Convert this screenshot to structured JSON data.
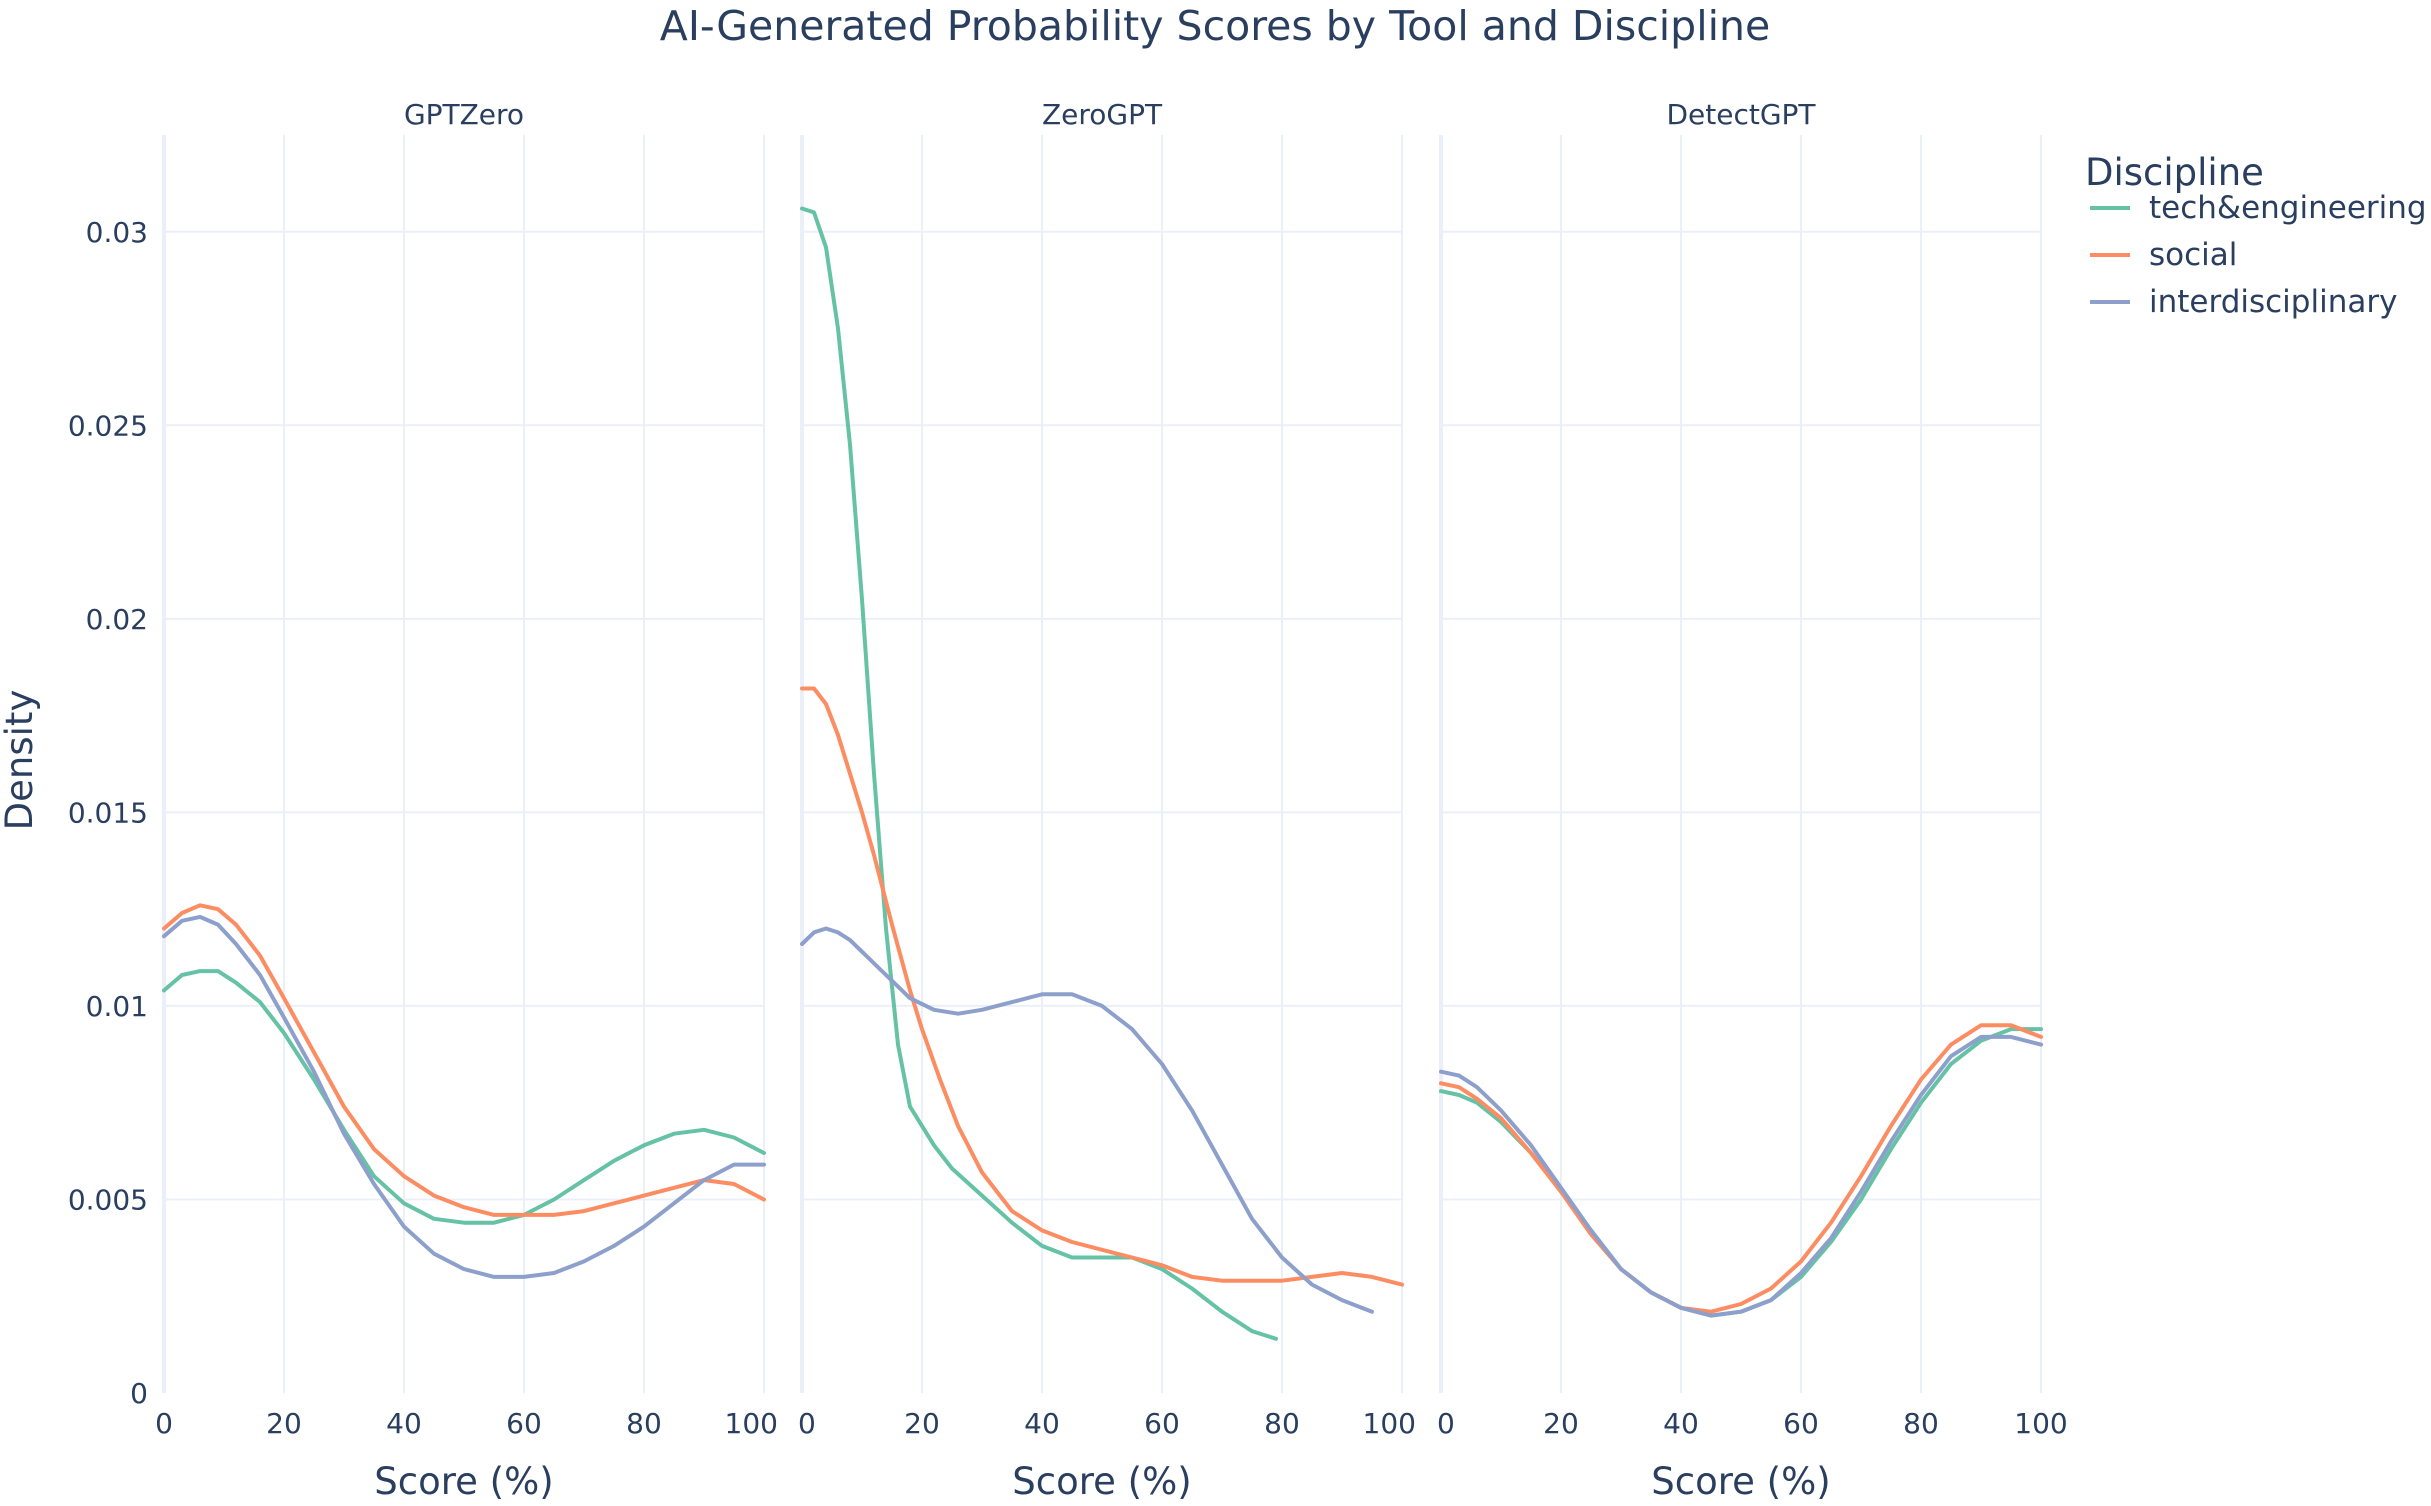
{
  "chart_data": {
    "type": "line",
    "title": "AI-Generated Probability Scores by Tool and Discipline",
    "ylabel": "Density",
    "xlabel": "Score (%)",
    "ylim": [
      0,
      0.0325
    ],
    "xlim": [
      0,
      100
    ],
    "xticks": [
      "0",
      "20",
      "40",
      "60",
      "80",
      "100"
    ],
    "yticks": [
      "0",
      "0.005",
      "0.01",
      "0.015",
      "0.02",
      "0.025",
      "0.03"
    ],
    "grid": true,
    "legend": {
      "title": "Discipline",
      "placement": "top-right",
      "entries": [
        "tech&engineering",
        "social",
        "interdisciplinary"
      ]
    },
    "colors": {
      "tech&engineering": "#66c2a5",
      "social": "#fc8d62",
      "interdisciplinary": "#8da0cb"
    },
    "panels": [
      {
        "name": "GPTZero",
        "series": [
          {
            "name": "tech&engineering",
            "x": [
              0,
              3,
              6,
              9,
              12,
              16,
              20,
              25,
              30,
              35,
              40,
              45,
              50,
              55,
              60,
              65,
              70,
              75,
              80,
              85,
              90,
              95,
              100
            ],
            "y": [
              0.0104,
              0.0108,
              0.0109,
              0.0109,
              0.0106,
              0.0101,
              0.0093,
              0.0081,
              0.0068,
              0.0056,
              0.0049,
              0.0045,
              0.0044,
              0.0044,
              0.0046,
              0.005,
              0.0055,
              0.006,
              0.0064,
              0.0067,
              0.0068,
              0.0066,
              0.0062
            ]
          },
          {
            "name": "social",
            "x": [
              0,
              3,
              6,
              9,
              12,
              16,
              20,
              25,
              30,
              35,
              40,
              45,
              50,
              55,
              60,
              65,
              70,
              75,
              80,
              85,
              90,
              95,
              100
            ],
            "y": [
              0.012,
              0.0124,
              0.0126,
              0.0125,
              0.0121,
              0.0113,
              0.0102,
              0.0088,
              0.0074,
              0.0063,
              0.0056,
              0.0051,
              0.0048,
              0.0046,
              0.0046,
              0.0046,
              0.0047,
              0.0049,
              0.0051,
              0.0053,
              0.0055,
              0.0054,
              0.005
            ]
          },
          {
            "name": "interdisciplinary",
            "x": [
              0,
              3,
              6,
              9,
              12,
              16,
              20,
              25,
              30,
              35,
              40,
              45,
              50,
              55,
              60,
              65,
              70,
              75,
              80,
              85,
              90,
              95,
              100
            ],
            "y": [
              0.0118,
              0.0122,
              0.0123,
              0.0121,
              0.0116,
              0.0108,
              0.0097,
              0.0083,
              0.0067,
              0.0054,
              0.0043,
              0.0036,
              0.0032,
              0.003,
              0.003,
              0.0031,
              0.0034,
              0.0038,
              0.0043,
              0.0049,
              0.0055,
              0.0059,
              0.0059
            ]
          }
        ]
      },
      {
        "name": "ZeroGPT",
        "series": [
          {
            "name": "tech&engineering",
            "x": [
              0,
              2,
              4,
              6,
              8,
              10,
              12,
              14,
              16,
              18,
              20,
              22,
              25,
              30,
              35,
              40,
              45,
              50,
              55,
              60,
              65,
              70,
              75,
              79
            ],
            "y": [
              0.0306,
              0.0305,
              0.0296,
              0.0275,
              0.0245,
              0.0205,
              0.016,
              0.012,
              0.009,
              0.0074,
              0.0069,
              0.0064,
              0.0058,
              0.0051,
              0.0044,
              0.0038,
              0.0035,
              0.0035,
              0.0035,
              0.0032,
              0.0027,
              0.0021,
              0.0016,
              0.0014
            ]
          },
          {
            "name": "social",
            "x": [
              0,
              2,
              4,
              6,
              8,
              10,
              12,
              15,
              18,
              20,
              23,
              26,
              30,
              35,
              40,
              45,
              50,
              55,
              60,
              65,
              70,
              75,
              80,
              85,
              90,
              95,
              100
            ],
            "y": [
              0.0182,
              0.0182,
              0.0178,
              0.017,
              0.016,
              0.015,
              0.0139,
              0.0121,
              0.0104,
              0.0094,
              0.0081,
              0.0069,
              0.0057,
              0.0047,
              0.0042,
              0.0039,
              0.0037,
              0.0035,
              0.0033,
              0.003,
              0.0029,
              0.0029,
              0.0029,
              0.003,
              0.0031,
              0.003,
              0.0028
            ]
          },
          {
            "name": "interdisciplinary",
            "x": [
              0,
              2,
              4,
              6,
              8,
              10,
              14,
              18,
              22,
              26,
              30,
              35,
              40,
              45,
              50,
              55,
              60,
              65,
              70,
              75,
              80,
              85,
              90,
              95
            ],
            "y": [
              0.0116,
              0.0119,
              0.012,
              0.0119,
              0.0117,
              0.0114,
              0.0108,
              0.0102,
              0.0099,
              0.0098,
              0.0099,
              0.0101,
              0.0103,
              0.0103,
              0.01,
              0.0094,
              0.0085,
              0.0073,
              0.0059,
              0.0045,
              0.0035,
              0.0028,
              0.0024,
              0.0021
            ]
          }
        ]
      },
      {
        "name": "DetectGPT",
        "series": [
          {
            "name": "tech&engineering",
            "x": [
              0,
              3,
              6,
              10,
              15,
              20,
              25,
              30,
              35,
              40,
              45,
              50,
              55,
              60,
              65,
              70,
              75,
              80,
              85,
              90,
              95,
              100
            ],
            "y": [
              0.0078,
              0.0077,
              0.0075,
              0.007,
              0.0062,
              0.0052,
              0.0042,
              0.0032,
              0.0026,
              0.0022,
              0.002,
              0.0021,
              0.0024,
              0.003,
              0.0039,
              0.005,
              0.0063,
              0.0075,
              0.0085,
              0.0091,
              0.0094,
              0.0094
            ]
          },
          {
            "name": "social",
            "x": [
              0,
              3,
              6,
              10,
              15,
              20,
              25,
              30,
              35,
              40,
              45,
              50,
              55,
              60,
              65,
              70,
              75,
              80,
              85,
              90,
              95,
              100
            ],
            "y": [
              0.008,
              0.0079,
              0.0076,
              0.0071,
              0.0062,
              0.0052,
              0.0041,
              0.0032,
              0.0026,
              0.0022,
              0.0021,
              0.0023,
              0.0027,
              0.0034,
              0.0044,
              0.0056,
              0.0069,
              0.0081,
              0.009,
              0.0095,
              0.0095,
              0.0092
            ]
          },
          {
            "name": "interdisciplinary",
            "x": [
              0,
              3,
              6,
              10,
              15,
              20,
              25,
              30,
              35,
              40,
              45,
              50,
              55,
              60,
              65,
              70,
              75,
              80,
              85,
              90,
              95,
              100
            ],
            "y": [
              0.0083,
              0.0082,
              0.0079,
              0.0073,
              0.0064,
              0.0053,
              0.0042,
              0.0032,
              0.0026,
              0.0022,
              0.002,
              0.0021,
              0.0024,
              0.0031,
              0.004,
              0.0052,
              0.0065,
              0.0077,
              0.0087,
              0.0092,
              0.0092,
              0.009
            ]
          }
        ]
      }
    ]
  }
}
